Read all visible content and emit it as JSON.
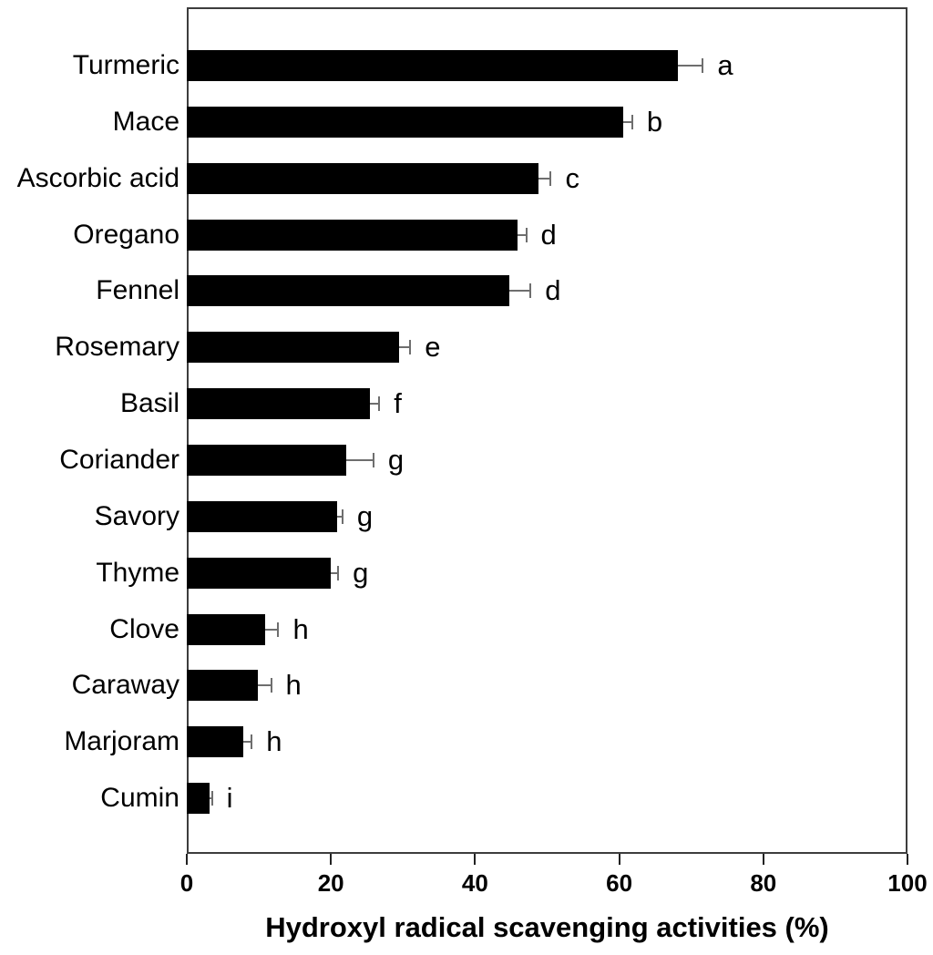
{
  "figure": {
    "background_color": "#ffffff",
    "bar_color": "#000000",
    "error_bar_color": "#6e6e6e",
    "axis_box_color": "#3d3d3d",
    "text_color": "#000000"
  },
  "chart_data": {
    "type": "bar",
    "orientation": "horizontal",
    "title": "",
    "xlabel": "Hydroxyl radical scavenging activities (%)",
    "ylabel": "",
    "xlim": [
      0,
      100
    ],
    "xticks": [
      "0",
      "20",
      "40",
      "60",
      "80",
      "100"
    ],
    "xtick_values": [
      0,
      20,
      40,
      60,
      80,
      100
    ],
    "grid": false,
    "legend": false,
    "categories": [
      "Turmeric",
      "Mace",
      "Ascorbic acid",
      "Oregano",
      "Fennel",
      "Rosemary",
      "Basil",
      "Coriander",
      "Savory",
      "Thyme",
      "Clove",
      "Caraway",
      "Marjoram",
      "Cumin"
    ],
    "values": [
      68.2,
      60.5,
      48.8,
      45.9,
      44.8,
      29.4,
      25.4,
      22.1,
      20.8,
      20.0,
      10.9,
      9.8,
      7.9,
      3.1
    ],
    "errors": [
      3.4,
      1.3,
      1.7,
      1.2,
      2.9,
      1.6,
      1.3,
      3.8,
      0.8,
      1.0,
      1.8,
      1.9,
      1.1,
      0.4
    ],
    "significance_letters": [
      "a",
      "b",
      "c",
      "d",
      "d",
      "e",
      "f",
      "g",
      "g",
      "g",
      "h",
      "h",
      "h",
      "i"
    ]
  }
}
